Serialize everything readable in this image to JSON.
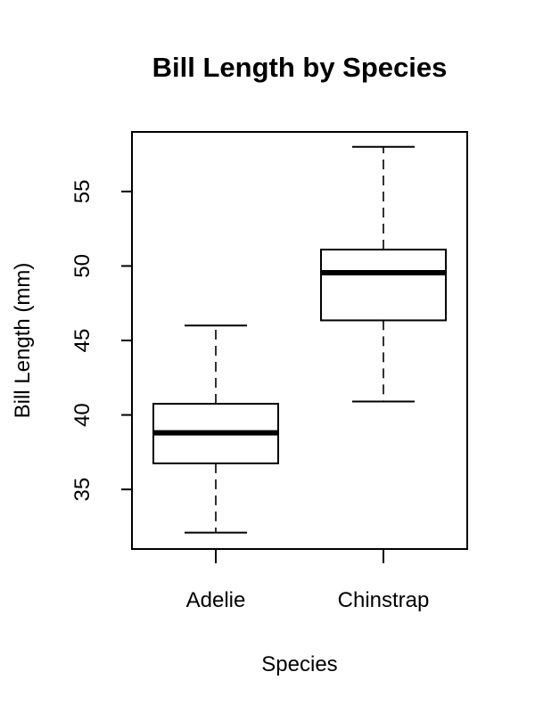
{
  "chart_data": {
    "type": "boxplot",
    "title": "Bill Length by Species",
    "xlabel": "Species",
    "ylabel": "Bill Length (mm)",
    "categories": [
      "Adelie",
      "Chinstrap"
    ],
    "boxes": [
      {
        "category": "Adelie",
        "whisker_low": 32.1,
        "q1": 36.75,
        "median": 38.8,
        "q3": 40.75,
        "whisker_high": 46.0
      },
      {
        "category": "Chinstrap",
        "whisker_low": 40.9,
        "q1": 46.35,
        "median": 49.55,
        "q3": 51.1,
        "whisker_high": 58.0
      }
    ],
    "yticks": [
      "35",
      "40",
      "45",
      "50",
      "55"
    ],
    "ylim": [
      31.0,
      59.0
    ],
    "grid": false,
    "colors": {
      "box_fill": "#ffffff",
      "stroke": "#000000"
    }
  }
}
